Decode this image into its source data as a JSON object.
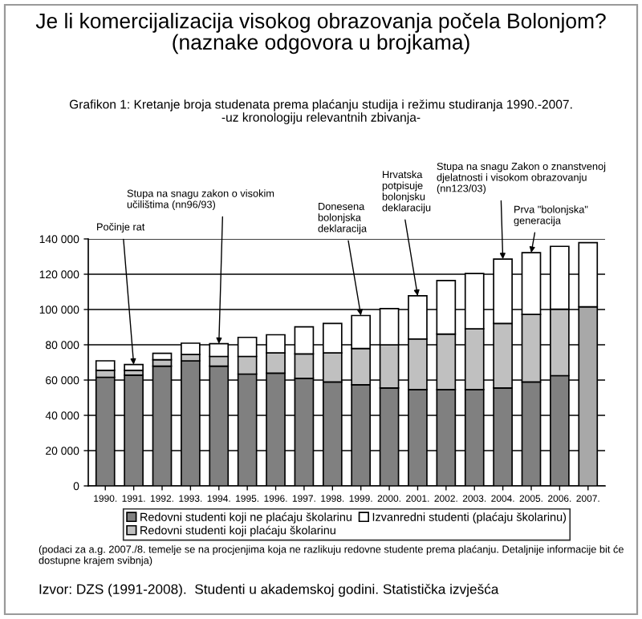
{
  "chart_data": {
    "type": "bar",
    "stacked": true,
    "title": "Je li komercijalizacija visokog obrazovanja počela Bolonjom?\n(naznake odgovora u brojkama)",
    "subtitle": "Grafikon 1: Kretanje broja studenata prema plaćanju studija i režimu studiranja 1990.-2007.\n-uz kronologiju relevantnih zbivanja-",
    "categories": [
      "1990.",
      "1991.",
      "1992.",
      "1993.",
      "1994.",
      "1995.",
      "1996.",
      "1997.",
      "1998.",
      "1999.",
      "2000.",
      "2001.",
      "2002.",
      "2003.",
      "2004.",
      "2005.",
      "2006.",
      "2007."
    ],
    "series": [
      {
        "name": "Redovni studenti koji ne plaćaju školarinu",
        "color": "#808080",
        "values": [
          61600,
          62800,
          67900,
          70900,
          67900,
          63400,
          63900,
          61000,
          58900,
          57300,
          55500,
          54600,
          54600,
          54600,
          55500,
          58900,
          62500,
          null
        ]
      },
      {
        "name": "Redovni studenti koji plaćaju školarinu",
        "color": "#c0c0c0",
        "values": [
          3900,
          2700,
          3600,
          3600,
          5500,
          10000,
          11500,
          13800,
          16500,
          20600,
          24500,
          28700,
          31500,
          34400,
          36600,
          38300,
          37700,
          null
        ]
      },
      {
        "color": "#a8a8a8",
        "values": [
          null,
          null,
          null,
          null,
          null,
          null,
          null,
          null,
          null,
          null,
          null,
          null,
          null,
          null,
          null,
          null,
          null,
          101500
        ]
      },
      {
        "name": "Izvanredni studenti (plaćaju školarinu)",
        "color": "#ffffff",
        "values": [
          5400,
          3300,
          3700,
          6400,
          7200,
          10800,
          10300,
          15400,
          16700,
          18700,
          20500,
          24500,
          30300,
          31400,
          36500,
          35000,
          35600,
          36400
        ]
      }
    ],
    "ylim": [
      0,
      140000
    ],
    "yticks": [
      {
        "value": 0,
        "label": "0"
      },
      {
        "value": 20000,
        "label": "20 000"
      },
      {
        "value": 40000,
        "label": "40 000"
      },
      {
        "value": 60000,
        "label": "60 000"
      },
      {
        "value": 80000,
        "label": "80 000"
      },
      {
        "value": 100000,
        "label": "100 000"
      },
      {
        "value": 120000,
        "label": "120 000"
      },
      {
        "value": 140000,
        "label": "140 000"
      }
    ],
    "grid": "y",
    "legend": "bottom",
    "annotations": [
      {
        "text": "Počinje rat",
        "x": "1991.",
        "y": 68800
      },
      {
        "text": "Stupa na snagu zakon o visokim\nučilištima (nn96/93)",
        "x": "1994.",
        "y": 80600
      },
      {
        "text": "Donesena\nbolonjska\ndeklaracija",
        "x": "1999.",
        "y": 96600
      },
      {
        "text": "Hrvatska\npotpisuje\nbolonjsku\ndeklaraciju",
        "x": "2001.",
        "y": 107800
      },
      {
        "text": "Stupa na snagu Zakon o znanstvenoj\ndjelatnosti i visokom obrazovanju\n(nn123/03)",
        "x": "2004.",
        "y": 128600
      },
      {
        "text": "Prva \"bolonjska\"\ngeneracija",
        "x": "2005.",
        "y": 132200
      },
      "(podaci za a.g. 2007./8. temelje se na procjenjima koja ne razlikuju redovne studente prema plaćanju. Detaljnije informacije bit će dostupne krajem svibnja)",
      "Izvor: DZS (1991-2008).  Studenti u akademskoj godini. Statistička izvješća"
    ]
  }
}
